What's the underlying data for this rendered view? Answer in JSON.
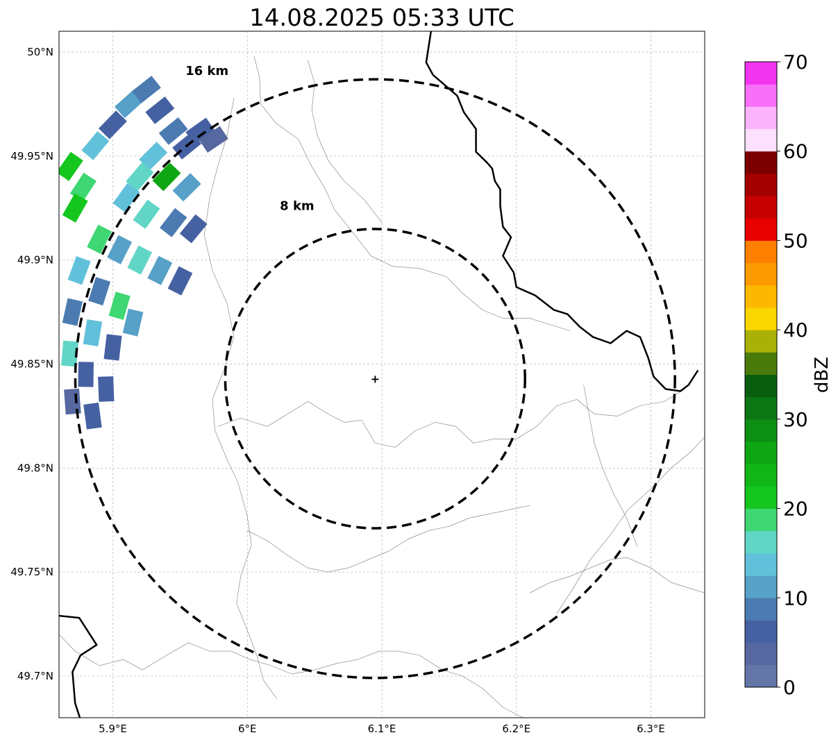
{
  "title": "14.08.2025 05:33 UTC",
  "map": {
    "lon_range": [
      5.86,
      6.34
    ],
    "lat_range": [
      49.68,
      50.01
    ],
    "lon_ticks": [
      {
        "value": 5.9,
        "label": "5.9°E"
      },
      {
        "value": 6.0,
        "label": "6°E"
      },
      {
        "value": 6.1,
        "label": "6.1°E"
      },
      {
        "value": 6.2,
        "label": "6.2°E"
      },
      {
        "value": 6.3,
        "label": "6.3°E"
      }
    ],
    "lat_ticks": [
      {
        "value": 49.7,
        "label": "49.7°N"
      },
      {
        "value": 49.75,
        "label": "49.75°N"
      },
      {
        "value": 49.8,
        "label": "49.8°N"
      },
      {
        "value": 49.85,
        "label": "49.85°N"
      },
      {
        "value": 49.9,
        "label": "49.9°N"
      },
      {
        "value": 49.95,
        "label": "49.95°N"
      },
      {
        "value": 50.0,
        "label": "50°N"
      }
    ],
    "gridlines": true,
    "center": {
      "lon": 6.095,
      "lat": 49.843
    },
    "range_rings": [
      {
        "radius_km": 8,
        "label": "8 km",
        "label_lon": 6.037,
        "label_lat": 49.924
      },
      {
        "radius_km": 16,
        "label": "16 km",
        "label_lon": 5.97,
        "label_lat": 49.989
      }
    ],
    "national_border": [
      [
        [
          6.137,
          50.012
        ],
        [
          6.133,
          49.995
        ],
        [
          6.138,
          49.989
        ],
        [
          6.147,
          49.984
        ],
        [
          6.156,
          49.979
        ],
        [
          6.161,
          49.971
        ],
        [
          6.17,
          49.963
        ],
        [
          6.17,
          49.952
        ],
        [
          6.178,
          49.947
        ],
        [
          6.182,
          49.944
        ],
        [
          6.184,
          49.938
        ],
        [
          6.188,
          49.934
        ],
        [
          6.188,
          49.926
        ],
        [
          6.19,
          49.916
        ],
        [
          6.196,
          49.911
        ],
        [
          6.19,
          49.902
        ],
        [
          6.198,
          49.894
        ],
        [
          6.2,
          49.887
        ],
        [
          6.214,
          49.883
        ],
        [
          6.228,
          49.876
        ],
        [
          6.238,
          49.874
        ],
        [
          6.247,
          49.868
        ],
        [
          6.257,
          49.863
        ],
        [
          6.27,
          49.86
        ],
        [
          6.282,
          49.866
        ],
        [
          6.292,
          49.863
        ],
        [
          6.298,
          49.853
        ],
        [
          6.302,
          49.844
        ],
        [
          6.311,
          49.838
        ],
        [
          6.322,
          49.837
        ],
        [
          6.328,
          49.84
        ],
        [
          6.335,
          49.847
        ]
      ],
      [
        [
          5.86,
          49.729
        ],
        [
          5.875,
          49.728
        ],
        [
          5.888,
          49.715
        ],
        [
          5.876,
          49.71
        ],
        [
          5.87,
          49.702
        ],
        [
          5.872,
          49.687
        ],
        [
          5.876,
          49.679
        ]
      ]
    ],
    "admin_borders": [
      [
        [
          6.005,
          49.998
        ],
        [
          6.009,
          49.988
        ],
        [
          6.01,
          49.975
        ],
        [
          6.021,
          49.966
        ],
        [
          6.038,
          49.958
        ],
        [
          6.047,
          49.946
        ],
        [
          6.058,
          49.934
        ],
        [
          6.065,
          49.924
        ],
        [
          6.08,
          49.912
        ],
        [
          6.092,
          49.902
        ],
        [
          6.108,
          49.897
        ],
        [
          6.128,
          49.896
        ],
        [
          6.148,
          49.892
        ],
        [
          6.16,
          49.884
        ],
        [
          6.175,
          49.876
        ],
        [
          6.19,
          49.872
        ],
        [
          6.21,
          49.872
        ],
        [
          6.225,
          49.869
        ],
        [
          6.24,
          49.866
        ]
      ],
      [
        [
          6.045,
          49.996
        ],
        [
          6.05,
          49.985
        ],
        [
          6.048,
          49.972
        ],
        [
          6.052,
          49.96
        ],
        [
          6.06,
          49.948
        ],
        [
          6.072,
          49.938
        ],
        [
          6.087,
          49.929
        ],
        [
          6.1,
          49.918
        ]
      ],
      [
        [
          5.99,
          49.978
        ],
        [
          5.985,
          49.96
        ],
        [
          5.978,
          49.945
        ],
        [
          5.972,
          49.93
        ],
        [
          5.968,
          49.912
        ],
        [
          5.974,
          49.895
        ],
        [
          5.985,
          49.879
        ],
        [
          5.99,
          49.863
        ],
        [
          5.983,
          49.848
        ],
        [
          5.974,
          49.833
        ],
        [
          5.976,
          49.818
        ],
        [
          5.985,
          49.804
        ],
        [
          5.993,
          49.793
        ],
        [
          6.0,
          49.777
        ],
        [
          6.003,
          49.763
        ],
        [
          5.995,
          49.748
        ],
        [
          5.992,
          49.735
        ],
        [
          6.0,
          49.722
        ],
        [
          6.007,
          49.71
        ],
        [
          6.012,
          49.698
        ],
        [
          6.022,
          49.689
        ]
      ],
      [
        [
          5.978,
          49.82
        ],
        [
          5.995,
          49.824
        ],
        [
          6.015,
          49.82
        ],
        [
          6.03,
          49.826
        ],
        [
          6.045,
          49.832
        ],
        [
          6.06,
          49.826
        ],
        [
          6.072,
          49.822
        ],
        [
          6.085,
          49.823
        ],
        [
          6.095,
          49.812
        ],
        [
          6.11,
          49.81
        ],
        [
          6.125,
          49.818
        ],
        [
          6.14,
          49.822
        ],
        [
          6.155,
          49.82
        ],
        [
          6.168,
          49.812
        ],
        [
          6.183,
          49.814
        ],
        [
          6.2,
          49.814
        ],
        [
          6.215,
          49.82
        ],
        [
          6.23,
          49.83
        ],
        [
          6.245,
          49.833
        ],
        [
          6.258,
          49.826
        ],
        [
          6.275,
          49.825
        ],
        [
          6.292,
          49.83
        ],
        [
          6.31,
          49.832
        ],
        [
          6.325,
          49.838
        ]
      ],
      [
        [
          5.86,
          49.72
        ],
        [
          5.872,
          49.712
        ],
        [
          5.89,
          49.705
        ],
        [
          5.908,
          49.708
        ],
        [
          5.922,
          49.703
        ],
        [
          5.94,
          49.71
        ],
        [
          5.956,
          49.716
        ],
        [
          5.972,
          49.712
        ],
        [
          5.988,
          49.712
        ],
        [
          6.002,
          49.708
        ],
        [
          6.018,
          49.705
        ],
        [
          6.033,
          49.701
        ],
        [
          6.05,
          49.703
        ],
        [
          6.066,
          49.706
        ],
        [
          6.082,
          49.708
        ],
        [
          6.098,
          49.712
        ],
        [
          6.112,
          49.712
        ],
        [
          6.128,
          49.71
        ],
        [
          6.145,
          49.703
        ],
        [
          6.16,
          49.7
        ],
        [
          6.175,
          49.694
        ],
        [
          6.19,
          49.685
        ],
        [
          6.205,
          49.68
        ]
      ],
      [
        [
          6.23,
          49.73
        ],
        [
          6.242,
          49.742
        ],
        [
          6.255,
          49.756
        ],
        [
          6.27,
          49.768
        ],
        [
          6.283,
          49.78
        ],
        [
          6.3,
          49.79
        ],
        [
          6.315,
          49.8
        ],
        [
          6.33,
          49.808
        ],
        [
          6.34,
          49.815
        ]
      ],
      [
        [
          6.21,
          49.74
        ],
        [
          6.225,
          49.745
        ],
        [
          6.24,
          49.748
        ],
        [
          6.255,
          49.752
        ],
        [
          6.27,
          49.756
        ],
        [
          6.282,
          49.757
        ],
        [
          6.3,
          49.752
        ],
        [
          6.315,
          49.745
        ],
        [
          6.33,
          49.742
        ],
        [
          6.34,
          49.74
        ]
      ],
      [
        [
          6.0,
          49.77
        ],
        [
          6.015,
          49.765
        ],
        [
          6.03,
          49.758
        ],
        [
          6.045,
          49.752
        ],
        [
          6.06,
          49.75
        ],
        [
          6.075,
          49.752
        ],
        [
          6.09,
          49.756
        ],
        [
          6.105,
          49.76
        ],
        [
          6.12,
          49.766
        ],
        [
          6.135,
          49.77
        ],
        [
          6.15,
          49.772
        ],
        [
          6.165,
          49.776
        ],
        [
          6.18,
          49.778
        ],
        [
          6.195,
          49.78
        ],
        [
          6.21,
          49.782
        ]
      ],
      [
        [
          6.25,
          49.84
        ],
        [
          6.254,
          49.826
        ],
        [
          6.258,
          49.812
        ],
        [
          6.264,
          49.8
        ],
        [
          6.272,
          49.788
        ],
        [
          6.282,
          49.776
        ],
        [
          6.29,
          49.762
        ]
      ]
    ],
    "radar_cells": [
      {
        "lon": 5.868,
        "lat": 49.945,
        "dbz": 21
      },
      {
        "lon": 5.878,
        "lat": 49.935,
        "dbz": 19
      },
      {
        "lon": 5.872,
        "lat": 49.925,
        "dbz": 22
      },
      {
        "lon": 5.887,
        "lat": 49.955,
        "dbz": 14
      },
      {
        "lon": 5.9,
        "lat": 49.965,
        "dbz": 7
      },
      {
        "lon": 5.912,
        "lat": 49.975,
        "dbz": 12
      },
      {
        "lon": 5.925,
        "lat": 49.982,
        "dbz": 9
      },
      {
        "lon": 5.935,
        "lat": 49.972,
        "dbz": 6
      },
      {
        "lon": 5.945,
        "lat": 49.962,
        "dbz": 8
      },
      {
        "lon": 5.955,
        "lat": 49.955,
        "dbz": 5
      },
      {
        "lon": 5.965,
        "lat": 49.962,
        "dbz": 7
      },
      {
        "lon": 5.975,
        "lat": 49.958,
        "dbz": 4
      },
      {
        "lon": 5.93,
        "lat": 49.95,
        "dbz": 14
      },
      {
        "lon": 5.92,
        "lat": 49.94,
        "dbz": 16
      },
      {
        "lon": 5.94,
        "lat": 49.94,
        "dbz": 25
      },
      {
        "lon": 5.955,
        "lat": 49.935,
        "dbz": 11
      },
      {
        "lon": 5.91,
        "lat": 49.93,
        "dbz": 13
      },
      {
        "lon": 5.925,
        "lat": 49.922,
        "dbz": 15
      },
      {
        "lon": 5.945,
        "lat": 49.918,
        "dbz": 9
      },
      {
        "lon": 5.96,
        "lat": 49.915,
        "dbz": 6
      },
      {
        "lon": 5.89,
        "lat": 49.91,
        "dbz": 18
      },
      {
        "lon": 5.905,
        "lat": 49.905,
        "dbz": 12
      },
      {
        "lon": 5.92,
        "lat": 49.9,
        "dbz": 17
      },
      {
        "lon": 5.935,
        "lat": 49.895,
        "dbz": 10
      },
      {
        "lon": 5.95,
        "lat": 49.89,
        "dbz": 7
      },
      {
        "lon": 5.875,
        "lat": 49.895,
        "dbz": 13
      },
      {
        "lon": 5.89,
        "lat": 49.885,
        "dbz": 9
      },
      {
        "lon": 5.905,
        "lat": 49.878,
        "dbz": 18
      },
      {
        "lon": 5.915,
        "lat": 49.87,
        "dbz": 12
      },
      {
        "lon": 5.87,
        "lat": 49.875,
        "dbz": 8
      },
      {
        "lon": 5.885,
        "lat": 49.865,
        "dbz": 14
      },
      {
        "lon": 5.9,
        "lat": 49.858,
        "dbz": 6
      },
      {
        "lon": 5.868,
        "lat": 49.855,
        "dbz": 17
      },
      {
        "lon": 5.88,
        "lat": 49.845,
        "dbz": 5
      },
      {
        "lon": 5.895,
        "lat": 49.838,
        "dbz": 7
      },
      {
        "lon": 5.87,
        "lat": 49.832,
        "dbz": 4
      },
      {
        "lon": 5.885,
        "lat": 49.825,
        "dbz": 6
      }
    ]
  },
  "colorbar": {
    "label": "dBZ",
    "min": 0,
    "max": 70,
    "step": 2.5,
    "ticks": [
      0,
      10,
      20,
      30,
      40,
      50,
      60,
      70
    ],
    "colors": [
      "#6475a8",
      "#5768a0",
      "#4661a2",
      "#4b7bb0",
      "#57a0c8",
      "#62c1da",
      "#61d6c6",
      "#3fd674",
      "#14c61e",
      "#10b616",
      "#0fa614",
      "#0c8f13",
      "#0b7612",
      "#085d0f",
      "#4a7b0a",
      "#aab106",
      "#fbd600",
      "#fcb800",
      "#fc9b00",
      "#fc7f00",
      "#e80000",
      "#c60000",
      "#a50000",
      "#7c0000",
      "#fde0fe",
      "#fbb4fb",
      "#f96ff8",
      "#f234ef"
    ]
  }
}
